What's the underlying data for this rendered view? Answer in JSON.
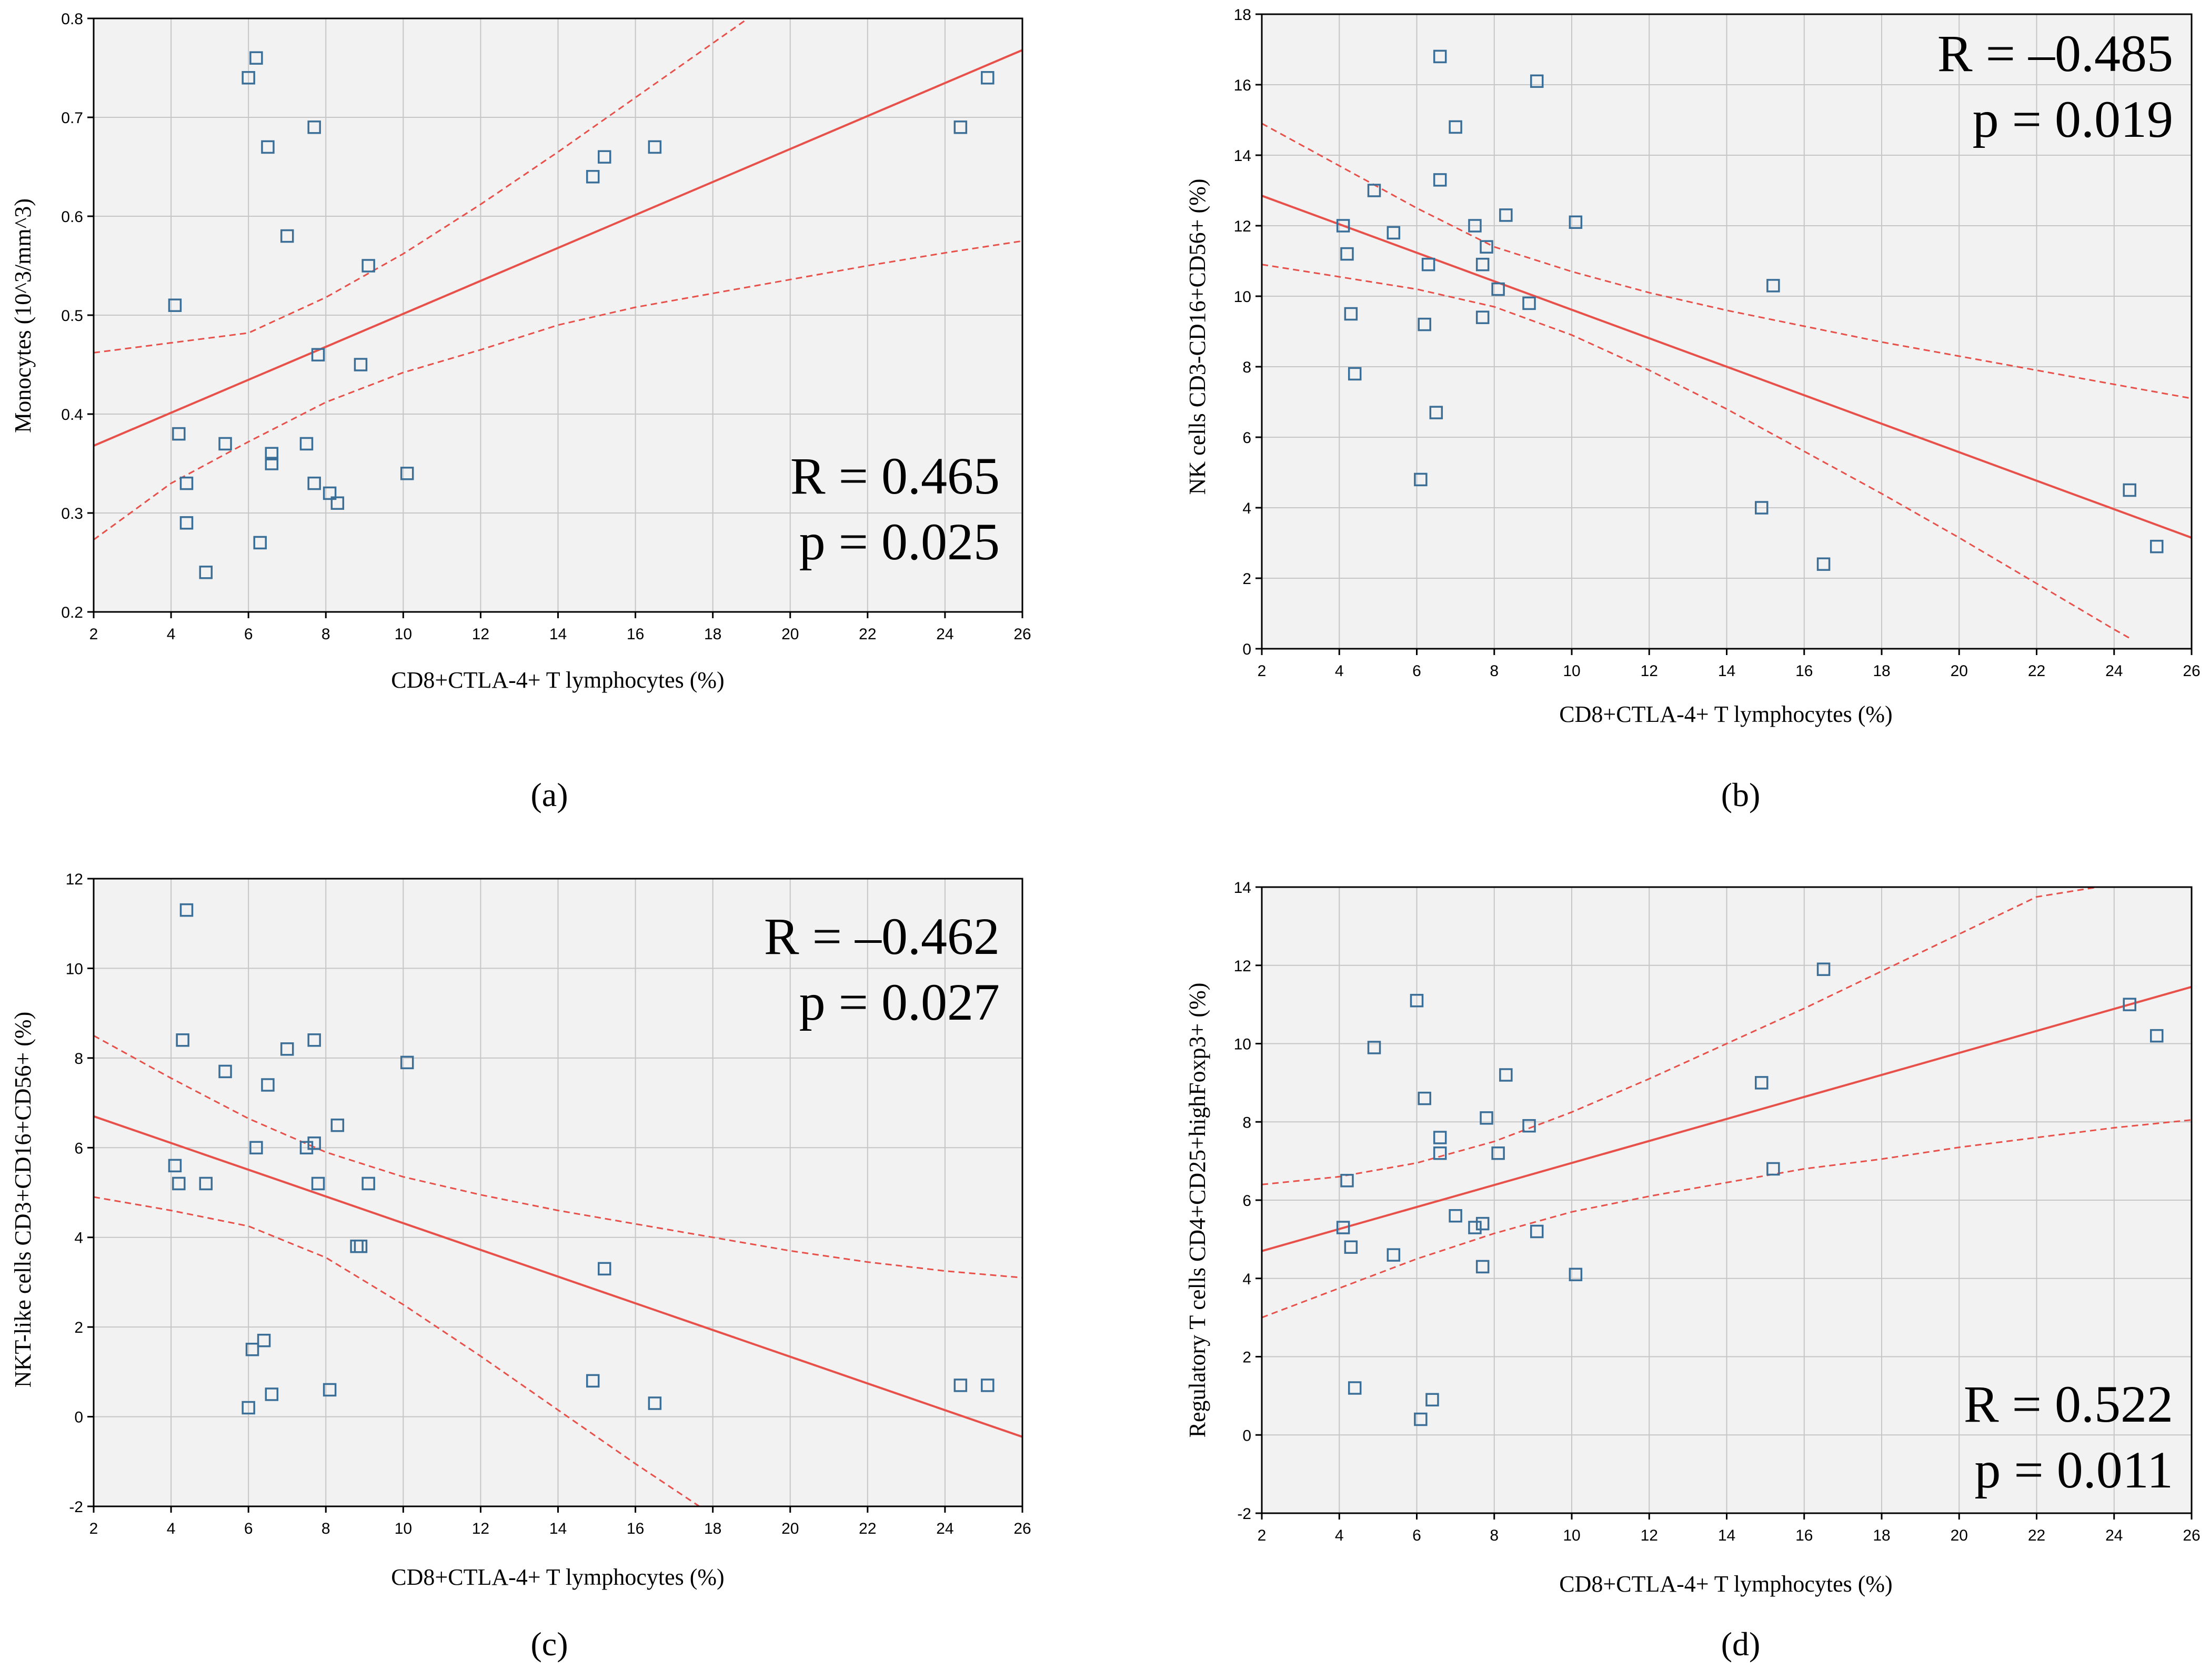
{
  "colors": {
    "plot_background": "#f2f2f2",
    "grid": "#c6c6c6",
    "fit_line": "#e8504a",
    "marker": "#3b6f98",
    "axes": "#000000"
  },
  "chart_data": [
    {
      "id": "a",
      "type": "scatter",
      "caption": "(a)",
      "xlabel": "CD8+CTLA-4+ T lymphocytes (%)",
      "ylabel": "Monocytes (10^3/mm^3)",
      "xlim": [
        2,
        26
      ],
      "ylim": [
        0.2,
        0.8
      ],
      "xticks": [
        2,
        4,
        6,
        8,
        10,
        12,
        14,
        16,
        18,
        20,
        22,
        24,
        26
      ],
      "yticks": [
        0.2,
        0.3,
        0.4,
        0.5,
        0.6,
        0.7,
        0.8
      ],
      "tick_labels_x": [
        "2",
        "4",
        "6",
        "8",
        "10",
        "12",
        "14",
        "16",
        "18",
        "20",
        "22",
        "24",
        "26"
      ],
      "tick_labels_y": [
        "0.2",
        "0.3",
        "0.4",
        "0.5",
        "0.6",
        "0.7",
        "0.8"
      ],
      "stats": {
        "r": "R = 0.465",
        "p": "p = 0.025"
      },
      "stats_position": "bottom-right",
      "grid": true,
      "points": [
        [
          4.1,
          0.51
        ],
        [
          4.2,
          0.38
        ],
        [
          4.4,
          0.33
        ],
        [
          4.4,
          0.29
        ],
        [
          4.9,
          0.24
        ],
        [
          5.4,
          0.37
        ],
        [
          6.0,
          0.74
        ],
        [
          6.2,
          0.76
        ],
        [
          6.3,
          0.27
        ],
        [
          6.5,
          0.67
        ],
        [
          6.6,
          0.36
        ],
        [
          6.6,
          0.35
        ],
        [
          7.0,
          0.58
        ],
        [
          7.5,
          0.37
        ],
        [
          7.7,
          0.69
        ],
        [
          7.7,
          0.33
        ],
        [
          7.8,
          0.46
        ],
        [
          8.1,
          0.32
        ],
        [
          8.3,
          0.31
        ],
        [
          8.9,
          0.45
        ],
        [
          9.1,
          0.55
        ],
        [
          10.1,
          0.34
        ],
        [
          14.9,
          0.64
        ],
        [
          15.2,
          0.66
        ],
        [
          16.5,
          0.67
        ],
        [
          24.4,
          0.69
        ],
        [
          25.1,
          0.74
        ]
      ],
      "fit_line": [
        [
          2,
          0.368
        ],
        [
          26,
          0.768
        ]
      ],
      "ci_upper": [
        [
          2,
          0.462
        ],
        [
          6,
          0.482
        ],
        [
          8,
          0.518
        ],
        [
          10,
          0.562
        ],
        [
          12,
          0.612
        ],
        [
          14,
          0.665
        ],
        [
          16,
          0.72
        ],
        [
          18,
          0.775
        ],
        [
          20,
          0.83
        ]
      ],
      "ci_lower": [
        [
          2,
          0.273
        ],
        [
          4,
          0.33
        ],
        [
          6,
          0.372
        ],
        [
          8,
          0.412
        ],
        [
          10,
          0.442
        ],
        [
          12,
          0.465
        ],
        [
          14,
          0.49
        ],
        [
          16,
          0.508
        ],
        [
          18,
          0.522
        ],
        [
          20,
          0.536
        ],
        [
          22,
          0.55
        ],
        [
          24,
          0.563
        ],
        [
          26,
          0.575
        ]
      ]
    },
    {
      "id": "b",
      "type": "scatter",
      "caption": "(b)",
      "xlabel": "CD8+CTLA-4+ T lymphocytes (%)",
      "ylabel": "NK cells CD3-CD16+CD56+ (%)",
      "xlim": [
        2,
        26
      ],
      "ylim": [
        0,
        18
      ],
      "xticks": [
        2,
        4,
        6,
        8,
        10,
        12,
        14,
        16,
        18,
        20,
        22,
        24,
        26
      ],
      "yticks": [
        0,
        2,
        4,
        6,
        8,
        10,
        12,
        14,
        16,
        18
      ],
      "tick_labels_x": [
        "2",
        "4",
        "6",
        "8",
        "10",
        "12",
        "14",
        "16",
        "18",
        "20",
        "22",
        "24",
        "26"
      ],
      "tick_labels_y": [
        "0",
        "2",
        "4",
        "6",
        "8",
        "10",
        "12",
        "14",
        "16",
        "18"
      ],
      "stats": {
        "r": "R = –0.485",
        "p": "p = 0.019"
      },
      "stats_position": "top-right",
      "grid": true,
      "points": [
        [
          4.1,
          12.0
        ],
        [
          4.2,
          11.2
        ],
        [
          4.3,
          9.5
        ],
        [
          4.4,
          7.8
        ],
        [
          4.9,
          13.0
        ],
        [
          5.4,
          11.8
        ],
        [
          6.1,
          4.8
        ],
        [
          6.2,
          9.2
        ],
        [
          6.3,
          10.9
        ],
        [
          6.5,
          6.7
        ],
        [
          6.6,
          16.8
        ],
        [
          6.6,
          13.3
        ],
        [
          7.0,
          14.8
        ],
        [
          7.5,
          12.0
        ],
        [
          7.7,
          10.9
        ],
        [
          7.7,
          9.4
        ],
        [
          7.8,
          11.4
        ],
        [
          8.1,
          10.2
        ],
        [
          8.3,
          12.3
        ],
        [
          8.9,
          9.8
        ],
        [
          9.1,
          16.1
        ],
        [
          10.1,
          12.1
        ],
        [
          14.9,
          4.0
        ],
        [
          15.2,
          10.3
        ],
        [
          16.5,
          2.4
        ],
        [
          24.4,
          4.5
        ],
        [
          25.1,
          2.9
        ]
      ],
      "fit_line": [
        [
          2,
          12.85
        ],
        [
          26,
          3.15
        ]
      ],
      "ci_upper": [
        [
          2,
          14.9
        ],
        [
          4,
          13.7
        ],
        [
          6,
          12.5
        ],
        [
          8,
          11.4
        ],
        [
          10,
          10.7
        ],
        [
          12,
          10.1
        ],
        [
          14,
          9.6
        ],
        [
          16,
          9.15
        ],
        [
          18,
          8.7
        ],
        [
          20,
          8.3
        ],
        [
          22,
          7.9
        ],
        [
          24,
          7.5
        ],
        [
          26,
          7.1
        ]
      ],
      "ci_lower": [
        [
          2,
          10.9
        ],
        [
          4,
          10.55
        ],
        [
          6,
          10.2
        ],
        [
          8,
          9.7
        ],
        [
          10,
          8.9
        ],
        [
          12,
          7.9
        ],
        [
          14,
          6.8
        ],
        [
          16,
          5.6
        ],
        [
          18,
          4.4
        ],
        [
          20,
          3.15
        ],
        [
          22,
          1.85
        ],
        [
          24,
          0.55
        ],
        [
          24.4,
          0.3
        ]
      ]
    },
    {
      "id": "c",
      "type": "scatter",
      "caption": "(c)",
      "xlabel": "CD8+CTLA-4+ T lymphocytes (%)",
      "ylabel": "NKT-like cells CD3+CD16+CD56+ (%)",
      "xlim": [
        2,
        26
      ],
      "ylim": [
        -2,
        12
      ],
      "xticks": [
        2,
        4,
        6,
        8,
        10,
        12,
        14,
        16,
        18,
        20,
        22,
        24,
        26
      ],
      "yticks": [
        -2,
        0,
        2,
        4,
        6,
        8,
        10,
        12
      ],
      "tick_labels_x": [
        "2",
        "4",
        "6",
        "8",
        "10",
        "12",
        "14",
        "16",
        "18",
        "20",
        "22",
        "24",
        "26"
      ],
      "tick_labels_y": [
        "-2",
        "0",
        "2",
        "4",
        "6",
        "8",
        "10",
        "12"
      ],
      "stats": {
        "r": "R = –0.462",
        "p": "p = 0.027"
      },
      "stats_position": "top-right",
      "grid": true,
      "points": [
        [
          4.1,
          5.6
        ],
        [
          4.2,
          5.2
        ],
        [
          4.3,
          8.4
        ],
        [
          4.4,
          11.3
        ],
        [
          4.9,
          5.2
        ],
        [
          5.4,
          7.7
        ],
        [
          6.0,
          0.2
        ],
        [
          6.1,
          1.5
        ],
        [
          6.2,
          6.0
        ],
        [
          6.4,
          1.7
        ],
        [
          6.5,
          7.4
        ],
        [
          6.6,
          0.5
        ],
        [
          7.0,
          8.2
        ],
        [
          7.5,
          6.0
        ],
        [
          7.7,
          8.4
        ],
        [
          7.7,
          6.1
        ],
        [
          7.8,
          5.2
        ],
        [
          8.1,
          0.6
        ],
        [
          8.3,
          6.5
        ],
        [
          8.8,
          3.8
        ],
        [
          8.9,
          3.8
        ],
        [
          9.1,
          5.2
        ],
        [
          10.1,
          7.9
        ],
        [
          14.9,
          0.8
        ],
        [
          15.2,
          3.3
        ],
        [
          16.5,
          0.3
        ],
        [
          24.4,
          0.7
        ],
        [
          25.1,
          0.7
        ]
      ],
      "fit_line": [
        [
          2,
          6.7
        ],
        [
          26,
          -0.45
        ]
      ],
      "ci_upper": [
        [
          2,
          8.5
        ],
        [
          4,
          7.55
        ],
        [
          6,
          6.65
        ],
        [
          8,
          5.9
        ],
        [
          10,
          5.35
        ],
        [
          12,
          4.95
        ],
        [
          14,
          4.6
        ],
        [
          16,
          4.3
        ],
        [
          18,
          4.0
        ],
        [
          20,
          3.7
        ],
        [
          22,
          3.45
        ],
        [
          24,
          3.25
        ],
        [
          26,
          3.1
        ]
      ],
      "ci_lower": [
        [
          2,
          4.9
        ],
        [
          4,
          4.6
        ],
        [
          6,
          4.25
        ],
        [
          8,
          3.55
        ],
        [
          10,
          2.5
        ],
        [
          12,
          1.35
        ],
        [
          14,
          0.15
        ],
        [
          16,
          -1.05
        ],
        [
          18,
          -2.2
        ]
      ]
    },
    {
      "id": "d",
      "type": "scatter",
      "caption": "(d)",
      "xlabel": "CD8+CTLA-4+ T lymphocytes (%)",
      "ylabel": "Regulatory T cells CD4+CD25+highFoxp3+ (%)",
      "xlim": [
        2,
        26
      ],
      "ylim": [
        -2,
        14
      ],
      "xticks": [
        2,
        4,
        6,
        8,
        10,
        12,
        14,
        16,
        18,
        20,
        22,
        24,
        26
      ],
      "yticks": [
        -2,
        0,
        2,
        4,
        6,
        8,
        10,
        12,
        14
      ],
      "tick_labels_x": [
        "2",
        "4",
        "6",
        "8",
        "10",
        "12",
        "14",
        "16",
        "18",
        "20",
        "22",
        "24",
        "26"
      ],
      "tick_labels_y": [
        "-2",
        "0",
        "2",
        "4",
        "6",
        "8",
        "10",
        "12",
        "14"
      ],
      "stats": {
        "r": "R = 0.522",
        "p": "p = 0.011"
      },
      "stats_position": "bottom-right",
      "grid": true,
      "points": [
        [
          4.1,
          5.3
        ],
        [
          4.2,
          6.5
        ],
        [
          4.3,
          4.8
        ],
        [
          4.4,
          1.2
        ],
        [
          4.9,
          9.9
        ],
        [
          5.4,
          4.6
        ],
        [
          6.0,
          11.1
        ],
        [
          6.1,
          0.4
        ],
        [
          6.2,
          8.6
        ],
        [
          6.4,
          0.9
        ],
        [
          6.6,
          7.6
        ],
        [
          6.6,
          7.2
        ],
        [
          7.0,
          5.6
        ],
        [
          7.5,
          5.3
        ],
        [
          7.7,
          5.4
        ],
        [
          7.7,
          4.3
        ],
        [
          7.8,
          8.1
        ],
        [
          8.1,
          7.2
        ],
        [
          8.3,
          9.2
        ],
        [
          8.9,
          7.9
        ],
        [
          9.1,
          5.2
        ],
        [
          10.1,
          4.1
        ],
        [
          14.9,
          9.0
        ],
        [
          15.2,
          6.8
        ],
        [
          16.5,
          11.9
        ],
        [
          24.4,
          11.0
        ],
        [
          25.1,
          10.2
        ]
      ],
      "fit_line": [
        [
          2,
          4.7
        ],
        [
          26,
          11.45
        ]
      ],
      "ci_upper": [
        [
          2,
          6.4
        ],
        [
          4,
          6.6
        ],
        [
          6,
          6.95
        ],
        [
          8,
          7.5
        ],
        [
          10,
          8.25
        ],
        [
          12,
          9.1
        ],
        [
          14,
          10.0
        ],
        [
          16,
          10.9
        ],
        [
          18,
          11.85
        ],
        [
          20,
          12.8
        ],
        [
          22,
          13.75
        ],
        [
          24.2,
          14.1
        ]
      ],
      "ci_lower": [
        [
          2,
          3.0
        ],
        [
          4,
          3.75
        ],
        [
          6,
          4.5
        ],
        [
          8,
          5.15
        ],
        [
          10,
          5.7
        ],
        [
          12,
          6.1
        ],
        [
          14,
          6.45
        ],
        [
          16,
          6.8
        ],
        [
          18,
          7.05
        ],
        [
          20,
          7.35
        ],
        [
          22,
          7.6
        ],
        [
          24,
          7.85
        ],
        [
          26,
          8.05
        ]
      ]
    }
  ]
}
